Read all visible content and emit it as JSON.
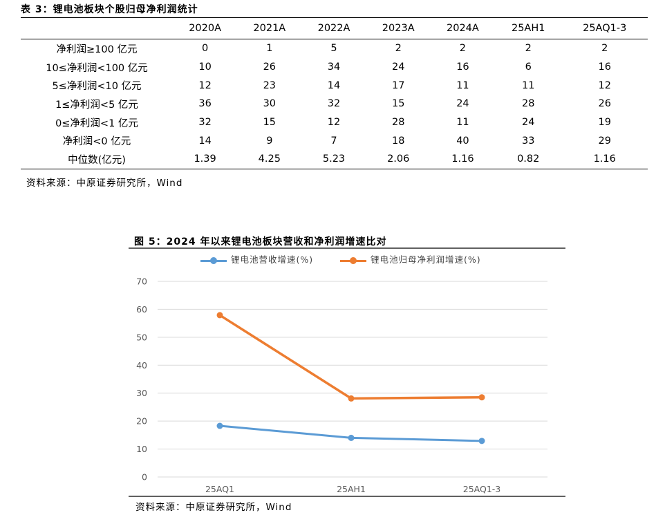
{
  "table": {
    "caption": "表 3：锂电池板块个股归母净利润统计",
    "columns": [
      "2020A",
      "2021A",
      "2022A",
      "2023A",
      "2024A",
      "25AH1",
      "25AQ1-3"
    ],
    "rows": [
      {
        "label": "净利润≥100 亿元",
        "values": [
          "0",
          "1",
          "5",
          "2",
          "2",
          "2",
          "2"
        ]
      },
      {
        "label": "10≤净利润<100 亿元",
        "values": [
          "10",
          "26",
          "34",
          "24",
          "16",
          "6",
          "16"
        ]
      },
      {
        "label": "5≤净利润<10 亿元",
        "values": [
          "12",
          "23",
          "14",
          "17",
          "11",
          "11",
          "12"
        ]
      },
      {
        "label": "1≤净利润<5 亿元",
        "values": [
          "36",
          "30",
          "32",
          "15",
          "24",
          "28",
          "26"
        ]
      },
      {
        "label": "0≤净利润<1 亿元",
        "values": [
          "32",
          "15",
          "12",
          "28",
          "11",
          "24",
          "19"
        ]
      },
      {
        "label": "净利润<0 亿元",
        "values": [
          "14",
          "9",
          "7",
          "18",
          "40",
          "33",
          "29"
        ]
      },
      {
        "label": "中位数(亿元)",
        "values": [
          "1.39",
          "4.25",
          "5.23",
          "2.06",
          "1.16",
          "0.82",
          "1.16"
        ]
      }
    ],
    "source": "资料来源：中原证券研究所，Wind"
  },
  "figure": {
    "caption": "图 5：2024 年以来锂电池板块营收和净利润增速比对",
    "source": "资料来源：中原证券研究所，Wind"
  },
  "chart_data": {
    "type": "line",
    "title": "图 5：2024 年以来锂电池板块营收和净利润增速比对",
    "categories": [
      "25AQ1",
      "25AH1",
      "25AQ1-3"
    ],
    "series": [
      {
        "name": "锂电池营收增速(%)",
        "color": "#5b9bd5",
        "values": [
          18.3,
          14.0,
          12.9
        ]
      },
      {
        "name": "锂电池归母净利润增速(%)",
        "color": "#ed7d31",
        "values": [
          57.9,
          28.1,
          28.5
        ]
      }
    ],
    "ylim": [
      0,
      70
    ],
    "yticks": [
      "0",
      "10",
      "20",
      "30",
      "40",
      "50",
      "60",
      "70"
    ],
    "grid": true,
    "legend_position": "top",
    "xlabel": "",
    "ylabel": ""
  }
}
